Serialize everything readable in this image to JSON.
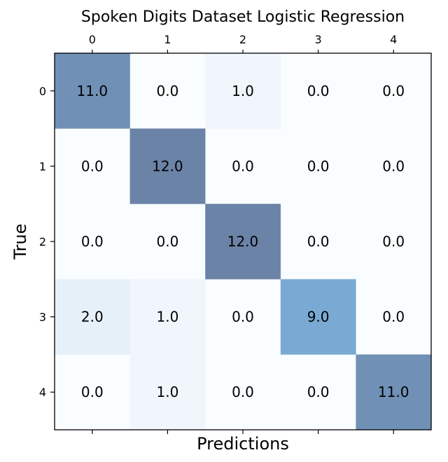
{
  "chart_data": {
    "type": "heatmap",
    "title": "Spoken Digits Dataset Logistic Regression",
    "xlabel": "Predictions",
    "ylabel": "True",
    "x_categories": [
      "0",
      "1",
      "2",
      "3",
      "4"
    ],
    "y_categories": [
      "0",
      "1",
      "2",
      "3",
      "4"
    ],
    "values": [
      [
        11.0,
        0.0,
        1.0,
        0.0,
        0.0
      ],
      [
        0.0,
        12.0,
        0.0,
        0.0,
        0.0
      ],
      [
        0.0,
        0.0,
        12.0,
        0.0,
        0.0
      ],
      [
        2.0,
        1.0,
        0.0,
        9.0,
        0.0
      ],
      [
        0.0,
        1.0,
        0.0,
        0.0,
        11.0
      ]
    ],
    "value_format": "0.0",
    "x_ticks_position": "top",
    "grid": false,
    "colormap": [
      "#f7fbff",
      "#c6dbef",
      "#6baed6",
      "#2171b5",
      "#08306b"
    ],
    "cell_opacity": 0.6
  }
}
